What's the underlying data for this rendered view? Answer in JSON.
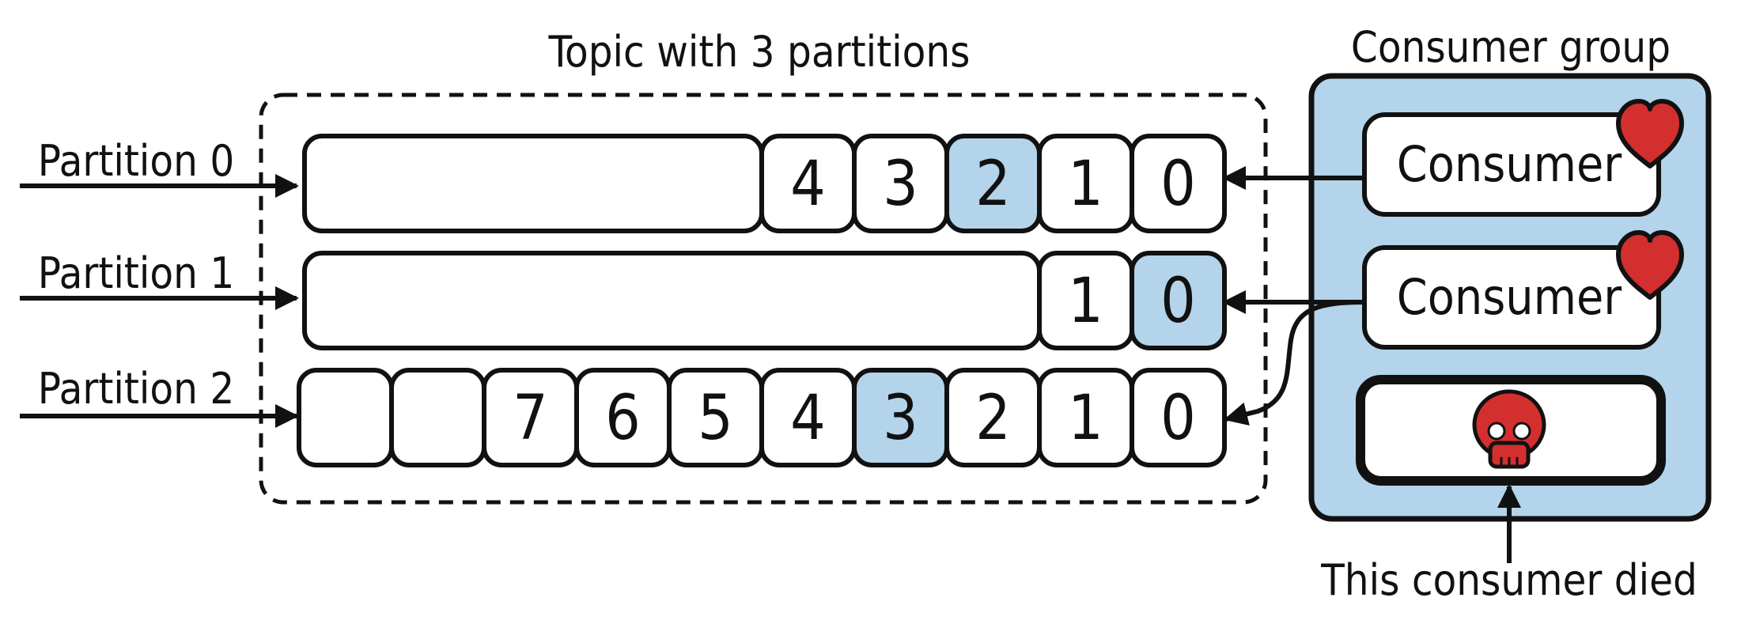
{
  "topic": {
    "title": "Topic with 3 partitions",
    "partitions": [
      {
        "label": "Partition 0",
        "offsets": [
          "4",
          "3",
          "2",
          "1",
          "0"
        ],
        "committed": "2",
        "empty_slots": 0
      },
      {
        "label": "Partition 1",
        "offsets": [
          "1",
          "0"
        ],
        "committed": "0",
        "empty_slots": 0
      },
      {
        "label": "Partition 2",
        "offsets": [
          "7",
          "6",
          "5",
          "4",
          "3",
          "2",
          "1",
          "0"
        ],
        "committed": "3",
        "empty_slots": 2
      }
    ]
  },
  "consumer_group": {
    "title": "Consumer group",
    "consumers": [
      {
        "label": "Consumer",
        "status_icon": "heart-icon",
        "reads_partitions": [
          "Partition 0"
        ]
      },
      {
        "label": "Consumer",
        "status_icon": "heart-icon",
        "reads_partitions": [
          "Partition 1",
          "Partition 2"
        ]
      },
      {
        "label": "",
        "status_icon": "skull-icon",
        "reads_partitions": []
      }
    ],
    "dead_consumer_note": "This consumer died"
  },
  "colors": {
    "highlight_cell": "#b3d4ea",
    "group_background": "#b3d4ea",
    "heart": "#d32f2f",
    "skull": "#d32f2f",
    "outline": "#111111"
  }
}
